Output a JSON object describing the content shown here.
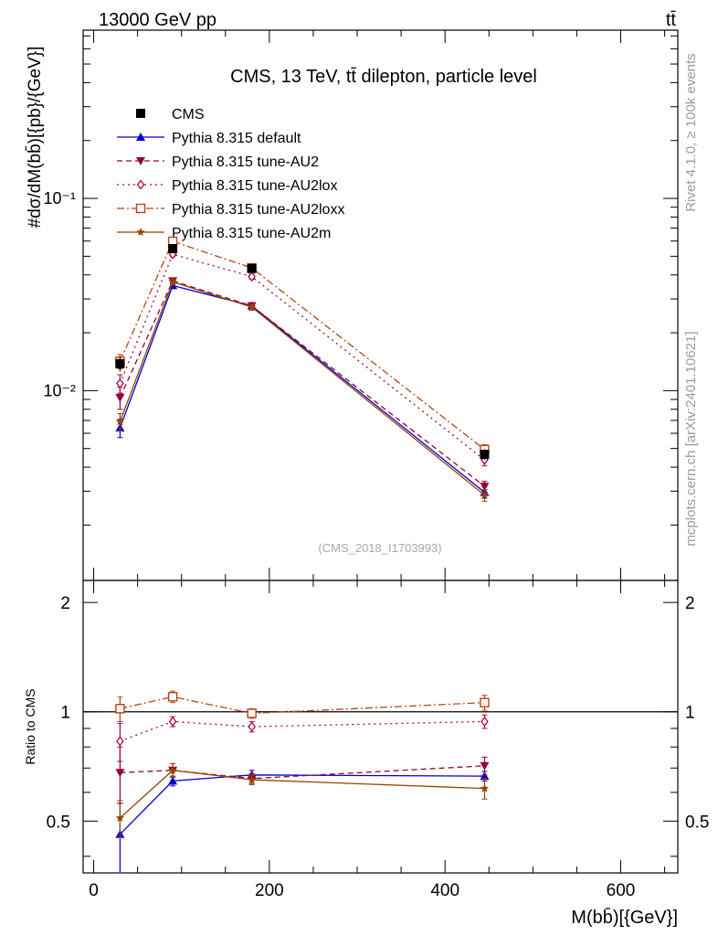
{
  "header": {
    "left": "13000 GeV pp",
    "right": "tt̄"
  },
  "side": {
    "rivet": "Rivet 4.1.0, ≥ 100k events",
    "mcplots": "mcplots.cern.ch [arXiv:2401.10621]"
  },
  "chart_data": {
    "type": "line",
    "title": "CMS, 13 TeV, tt̄ dilepton, particle level",
    "watermark": "(CMS_2018_I1703993)",
    "xlabel": "M(bb̄)[{GeV}]",
    "ylabel": "#dσ/dM(bb̄)[{pb}/{GeV}]",
    "ylabel_ratio": "Ratio to CMS",
    "xlim": [
      -12,
      665
    ],
    "ylim_main": [
      0.00103,
      0.75
    ],
    "ylim_ratio": [
      0.36,
      2.3
    ],
    "x_ticks": [
      "0",
      "200",
      "400",
      "600"
    ],
    "y_ticks_main": [
      "10⁻²",
      "10⁻¹"
    ],
    "y_ticks_ratio": [
      "0.5",
      "1",
      "2"
    ],
    "x": [
      30,
      90,
      180,
      445
    ],
    "data": {
      "name": "CMS",
      "values": [
        0.0138,
        0.0548,
        0.0432,
        0.00466
      ],
      "errors": [
        0.0012,
        0.003,
        0.0025,
        0.0003
      ]
    },
    "series": [
      {
        "name": "Pythia 8.315 default",
        "color": "#0000cc",
        "marker": "triangle-up",
        "dash": "",
        "values": [
          0.0064,
          0.0352,
          0.0276,
          0.00296
        ],
        "errors": [
          0.0007,
          0.0012,
          0.001,
          0.0002
        ],
        "ratio": [
          0.46,
          0.645,
          0.67,
          0.665
        ],
        "ratio_errors": [
          0.1,
          0.02,
          0.02,
          0.02
        ]
      },
      {
        "name": "Pythia 8.315 tune-AU2",
        "color": "#990033",
        "marker": "triangle-down",
        "dash": "6,4",
        "values": [
          0.0092,
          0.0372,
          0.0276,
          0.00318
        ],
        "errors": [
          0.0012,
          0.0012,
          0.001,
          0.0002
        ],
        "ratio": [
          0.68,
          0.69,
          0.655,
          0.71
        ],
        "ratio_errors": [
          0.12,
          0.03,
          0.02,
          0.04
        ]
      },
      {
        "name": "Pythia 8.315 tune-AU2lox",
        "color": "#aa0044",
        "marker": "diamond",
        "dash": "2,4",
        "values": [
          0.0109,
          0.0512,
          0.0392,
          0.00436
        ],
        "errors": [
          0.0012,
          0.0015,
          0.0012,
          0.0003
        ],
        "ratio": [
          0.83,
          0.94,
          0.91,
          0.94
        ],
        "ratio_errors": [
          0.1,
          0.03,
          0.03,
          0.04
        ]
      },
      {
        "name": "Pythia 8.315 tune-AU2loxx",
        "color": "#bb4411",
        "marker": "square-open",
        "dash": "8,3,2,3",
        "values": [
          0.0142,
          0.0598,
          0.0435,
          0.00494
        ],
        "errors": [
          0.0012,
          0.002,
          0.0012,
          0.0003
        ],
        "ratio": [
          1.02,
          1.1,
          0.99,
          1.06
        ],
        "ratio_errors": [
          0.08,
          0.04,
          0.03,
          0.05
        ]
      },
      {
        "name": "Pythia 8.315 tune-AU2m",
        "color": "#994400",
        "marker": "star",
        "dash": "",
        "values": [
          0.0069,
          0.0368,
          0.0272,
          0.00286
        ],
        "errors": [
          0.0007,
          0.0012,
          0.001,
          0.0002
        ],
        "ratio": [
          0.51,
          0.69,
          0.65,
          0.615
        ],
        "ratio_errors": [
          0.06,
          0.03,
          0.02,
          0.04
        ]
      }
    ]
  }
}
